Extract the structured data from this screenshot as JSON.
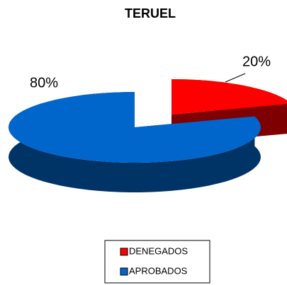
{
  "chart_data": {
    "type": "pie",
    "title": "TERUEL",
    "categories": [
      "DENEGADOS",
      "APROBADOS"
    ],
    "values": [
      20,
      80
    ],
    "value_labels": [
      "20%",
      "80%"
    ],
    "colors": [
      "#ff0000",
      "#0066cc"
    ],
    "legend": "bottom"
  }
}
